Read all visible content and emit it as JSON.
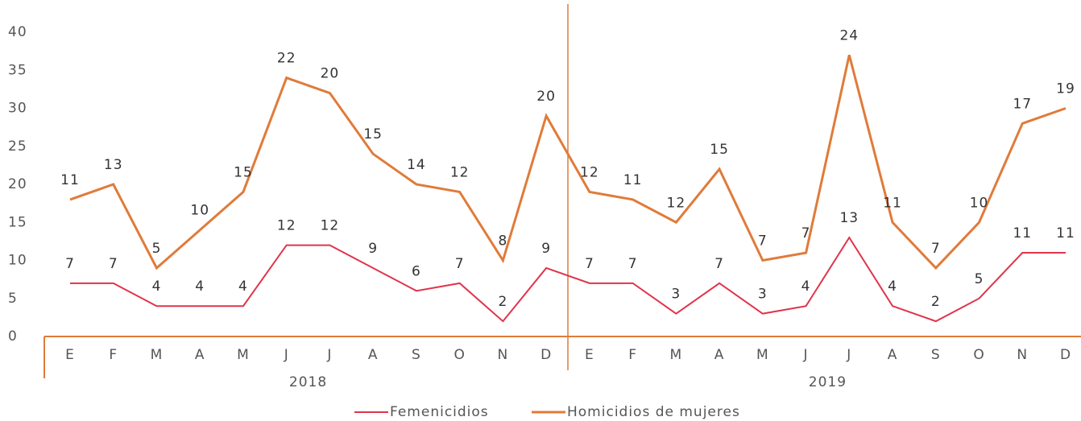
{
  "chart_data": {
    "type": "line",
    "stacked": true,
    "categories": [
      "E",
      "F",
      "M",
      "A",
      "M",
      "J",
      "J",
      "A",
      "S",
      "O",
      "N",
      "D",
      "E",
      "F",
      "M",
      "A",
      "M",
      "J",
      "J",
      "A",
      "S",
      "O",
      "N",
      "D"
    ],
    "groups": [
      "2018",
      "2019"
    ],
    "series": [
      {
        "name": "Femenicidios",
        "color": "#e0344c",
        "values": [
          7,
          7,
          4,
          4,
          4,
          12,
          12,
          9,
          6,
          7,
          2,
          9,
          7,
          7,
          3,
          7,
          3,
          4,
          13,
          4,
          2,
          5,
          11,
          11
        ]
      },
      {
        "name": "Homicidios de mujeres",
        "color": "#e07b39",
        "values": [
          11,
          13,
          5,
          10,
          15,
          22,
          20,
          15,
          14,
          12,
          8,
          20,
          12,
          11,
          12,
          15,
          7,
          7,
          24,
          11,
          7,
          10,
          17,
          19
        ]
      }
    ],
    "ylim": [
      0,
      40
    ],
    "yticks": [
      0,
      5,
      10,
      15,
      20,
      25,
      30,
      35,
      40
    ],
    "legend": "bottom"
  }
}
